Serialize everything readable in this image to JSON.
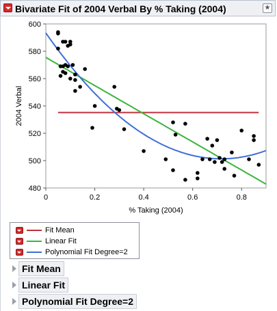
{
  "header": {
    "title": "Bivariate Fit of 2004 Verbal By % Taking (2004)"
  },
  "legend": {
    "items": [
      {
        "label": "Fit Mean",
        "color": "#c0303a"
      },
      {
        "label": "Linear Fit",
        "color": "#3cb43c"
      },
      {
        "label": "Polynomial Fit Degree=2",
        "color": "#3e6ed8"
      }
    ]
  },
  "sections": [
    {
      "label": "Fit Mean"
    },
    {
      "label": "Linear Fit"
    },
    {
      "label": "Polynomial Fit Degree=2"
    }
  ],
  "chart_data": {
    "type": "scatter",
    "xlabel": "% Taking (2004)",
    "ylabel": "2004 Verbal",
    "xlim": [
      0,
      0.9
    ],
    "ylim": [
      480,
      600
    ],
    "xticks": [
      0,
      0.2,
      0.4,
      0.6,
      0.8
    ],
    "yticks": [
      480,
      500,
      520,
      540,
      560,
      580,
      600
    ],
    "x_tick_labels": [
      "0",
      "0.2",
      "0.4",
      "0.6",
      "0.8"
    ],
    "y_tick_labels": [
      "480",
      "500",
      "520",
      "540",
      "560",
      "580",
      "600"
    ],
    "grid": false,
    "point_color": "#000000",
    "points": [
      [
        0.05,
        594
      ],
      [
        0.05,
        593
      ],
      [
        0.05,
        582
      ],
      [
        0.07,
        587
      ],
      [
        0.08,
        587
      ],
      [
        0.09,
        584
      ],
      [
        0.1,
        585
      ],
      [
        0.1,
        587
      ],
      [
        0.06,
        569
      ],
      [
        0.07,
        569
      ],
      [
        0.08,
        570
      ],
      [
        0.09,
        569
      ],
      [
        0.07,
        565
      ],
      [
        0.08,
        564
      ],
      [
        0.11,
        570
      ],
      [
        0.06,
        562
      ],
      [
        0.1,
        560
      ],
      [
        0.12,
        559
      ],
      [
        0.12,
        563
      ],
      [
        0.12,
        551
      ],
      [
        0.14,
        554
      ],
      [
        0.16,
        567
      ],
      [
        0.2,
        540
      ],
      [
        0.19,
        524
      ],
      [
        0.28,
        554
      ],
      [
        0.29,
        538
      ],
      [
        0.3,
        537
      ],
      [
        0.32,
        523
      ],
      [
        0.4,
        507
      ],
      [
        0.49,
        501
      ],
      [
        0.52,
        528
      ],
      [
        0.53,
        519
      ],
      [
        0.57,
        527
      ],
      [
        0.52,
        493
      ],
      [
        0.57,
        486
      ],
      [
        0.62,
        487
      ],
      [
        0.62,
        491
      ],
      [
        0.64,
        501
      ],
      [
        0.66,
        516
      ],
      [
        0.68,
        511
      ],
      [
        0.67,
        501
      ],
      [
        0.69,
        499
      ],
      [
        0.7,
        515
      ],
      [
        0.71,
        502
      ],
      [
        0.72,
        499
      ],
      [
        0.73,
        501
      ],
      [
        0.73,
        494
      ],
      [
        0.76,
        506
      ],
      [
        0.77,
        489
      ],
      [
        0.8,
        522
      ],
      [
        0.83,
        501
      ],
      [
        0.85,
        518
      ],
      [
        0.85,
        515
      ],
      [
        0.87,
        497
      ]
    ],
    "fits": [
      {
        "name": "Fit Mean",
        "color": "#c0303a",
        "kind": "mean",
        "y": 535.2,
        "x_range": [
          0.05,
          0.87
        ]
      },
      {
        "name": "Linear Fit",
        "color": "#3cb43c",
        "kind": "linear",
        "intercept": 575.5,
        "slope": -103,
        "x_range": [
          0,
          0.9
        ]
      },
      {
        "name": "Polynomial Fit Degree=2",
        "color": "#3e6ed8",
        "kind": "quadratic",
        "coefficients": [
          593.4,
          -256.9,
          179.2
        ],
        "x_range": [
          0,
          0.9
        ]
      }
    ]
  }
}
